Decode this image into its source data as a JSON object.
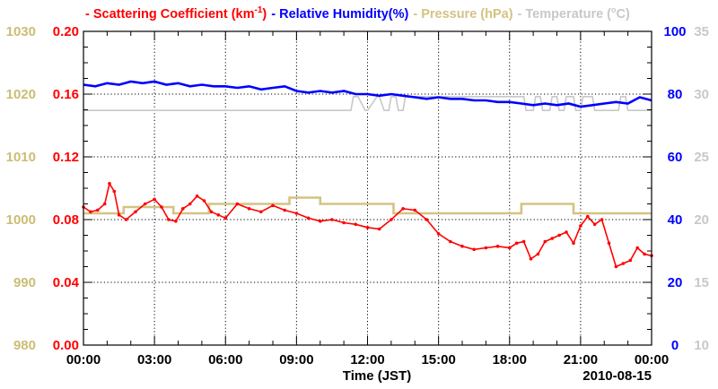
{
  "chart_data": {
    "type": "line",
    "date_label": "2010-08-15",
    "xlabel": "Time (JST)",
    "x_ticks": [
      "00:00",
      "03:00",
      "06:00",
      "09:00",
      "12:00",
      "15:00",
      "18:00",
      "21:00",
      "00:00"
    ],
    "x_range_hours": [
      0,
      24
    ],
    "legend": [
      {
        "dash": "-",
        "name": "Scattering Coefficient (km",
        "sup": "-1",
        "close": ")",
        "color": "#ff0000"
      },
      {
        "dash": "-",
        "name": "Relative Humidity(%)",
        "color": "#0000ff"
      },
      {
        "dash": "-",
        "name": "Pressure (hPa)",
        "color": "#d4c383"
      },
      {
        "dash": "-",
        "name": "Temperature (",
        "tail": "C)",
        "color": "#c8c8c8"
      }
    ],
    "axes": {
      "pressure": {
        "color": "#cbbd74",
        "range": [
          980,
          1030
        ],
        "ticks": [
          "980",
          "990",
          "1000",
          "1010",
          "1020",
          "1030"
        ]
      },
      "scattering": {
        "color": "#ff0000",
        "range": [
          0,
          0.2
        ],
        "ticks": [
          "0.00",
          "0.04",
          "0.08",
          "0.12",
          "0.16",
          "0.20"
        ]
      },
      "humidity": {
        "color": "#0000ff",
        "range": [
          0,
          100
        ],
        "ticks": [
          "0",
          "20",
          "40",
          "60",
          "80",
          "100"
        ]
      },
      "temperature": {
        "color": "#c8c8c8",
        "range": [
          10,
          35
        ],
        "ticks": [
          "10",
          "15",
          "20",
          "25",
          "30",
          "35"
        ]
      }
    },
    "series": [
      {
        "name": "Scattering Coefficient",
        "axis": "scattering",
        "color": "#ff0000",
        "marker": true,
        "x": [
          0,
          0.3,
          0.6,
          0.9,
          1.1,
          1.3,
          1.5,
          1.8,
          2.2,
          2.6,
          3.0,
          3.3,
          3.6,
          3.9,
          4.2,
          4.5,
          4.8,
          5.1,
          5.4,
          5.7,
          6.0,
          6.5,
          7.0,
          7.5,
          8.0,
          8.5,
          9.0,
          9.5,
          10.0,
          10.5,
          11.0,
          11.5,
          12.0,
          12.5,
          13.0,
          13.5,
          14.0,
          14.5,
          15.0,
          15.5,
          16.0,
          16.5,
          17.0,
          17.5,
          18.0,
          18.3,
          18.6,
          18.9,
          19.2,
          19.5,
          19.8,
          20.1,
          20.4,
          20.7,
          21.0,
          21.3,
          21.6,
          21.9,
          22.2,
          22.5,
          22.8,
          23.1,
          23.4,
          23.7,
          24.0
        ],
        "y": [
          0.088,
          0.085,
          0.086,
          0.09,
          0.103,
          0.098,
          0.083,
          0.08,
          0.085,
          0.09,
          0.093,
          0.088,
          0.08,
          0.079,
          0.087,
          0.09,
          0.095,
          0.092,
          0.085,
          0.083,
          0.081,
          0.09,
          0.087,
          0.085,
          0.089,
          0.086,
          0.084,
          0.081,
          0.079,
          0.08,
          0.078,
          0.077,
          0.075,
          0.074,
          0.08,
          0.087,
          0.086,
          0.08,
          0.071,
          0.066,
          0.063,
          0.061,
          0.062,
          0.063,
          0.062,
          0.065,
          0.066,
          0.055,
          0.058,
          0.066,
          0.068,
          0.07,
          0.072,
          0.065,
          0.076,
          0.082,
          0.077,
          0.08,
          0.065,
          0.05,
          0.052,
          0.054,
          0.062,
          0.058,
          0.057
        ]
      },
      {
        "name": "Relative Humidity",
        "axis": "humidity",
        "color": "#0000ff",
        "marker": false,
        "x": [
          0,
          0.5,
          1.0,
          1.5,
          2.0,
          2.5,
          3.0,
          3.5,
          4.0,
          4.5,
          5.0,
          5.5,
          6.0,
          6.5,
          7.0,
          7.5,
          8.0,
          8.5,
          9.0,
          9.5,
          10.0,
          10.5,
          11.0,
          11.5,
          12.0,
          12.5,
          13.0,
          13.5,
          14.0,
          14.5,
          15.0,
          15.5,
          16.0,
          16.5,
          17.0,
          17.5,
          18.0,
          18.5,
          19.0,
          19.5,
          20.0,
          20.5,
          21.0,
          21.5,
          22.0,
          22.5,
          23.0,
          23.5,
          24.0
        ],
        "y": [
          83,
          82.5,
          83.5,
          83,
          84,
          83.5,
          84,
          83,
          83.5,
          82.5,
          83,
          82.5,
          82.5,
          82,
          82.5,
          81.5,
          82,
          82.5,
          81,
          80.5,
          81,
          80.5,
          81,
          80,
          80,
          79.5,
          80,
          79.5,
          79,
          78.5,
          79,
          78.5,
          78.5,
          78,
          78,
          77.5,
          77.5,
          77,
          76.5,
          77,
          76.5,
          77,
          76,
          76.5,
          77,
          77.5,
          77,
          79,
          78
        ]
      },
      {
        "name": "Pressure",
        "axis": "pressure",
        "color": "#d4c383",
        "marker": false,
        "step": true,
        "x": [
          0,
          1.7,
          3.8,
          5.3,
          8.7,
          10.0,
          13.1,
          18.5,
          20.7,
          24.0
        ],
        "y": [
          1001,
          1002,
          1001,
          1002.5,
          1003.5,
          1002.5,
          1001,
          1002.5,
          1001,
          1001
        ]
      },
      {
        "name": "Temperature",
        "axis": "temperature",
        "color": "#c8c8c8",
        "marker": false,
        "x": [
          0,
          11.3,
          11.4,
          11.6,
          11.9,
          12.0,
          12.4,
          12.5,
          12.7,
          12.9,
          13.0,
          13.2,
          13.3,
          13.5,
          13.6,
          18.6,
          18.7,
          19.0,
          19.1,
          19.3,
          19.4,
          19.7,
          19.8,
          20.0,
          20.1,
          20.3,
          20.4,
          20.7,
          20.8,
          21.0,
          21.1,
          21.5,
          21.6,
          22.6,
          22.7,
          22.9,
          23.0,
          24.0
        ],
        "y": [
          28.7,
          28.7,
          29.8,
          29.8,
          28.7,
          28.7,
          29.8,
          29.8,
          28.7,
          28.7,
          29.8,
          29.8,
          28.7,
          28.7,
          29.8,
          29.8,
          28.7,
          28.7,
          29.8,
          29.8,
          28.7,
          28.7,
          29.8,
          29.8,
          28.7,
          28.7,
          29.8,
          29.8,
          28.7,
          28.7,
          29.8,
          29.8,
          28.7,
          28.7,
          29.8,
          29.8,
          28.7,
          28.7
        ]
      }
    ]
  }
}
